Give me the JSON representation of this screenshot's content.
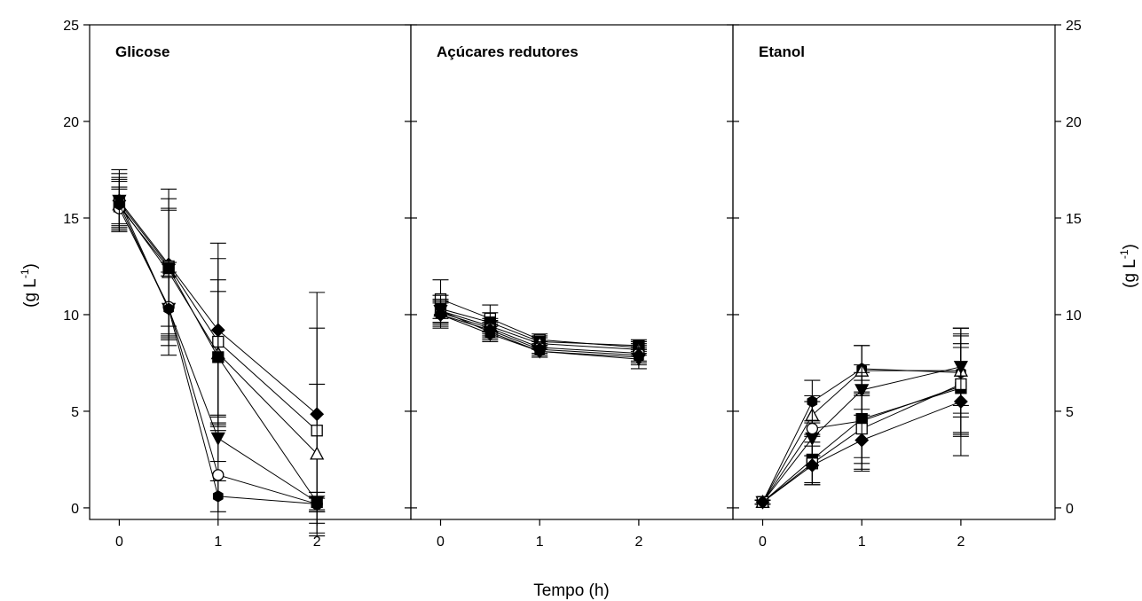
{
  "figure": {
    "x_axis_label": "Tempo (h)",
    "y_axis_label_left": "(g L",
    "y_axis_label_right": "(g L",
    "y_axis_unit_exponent": "-1",
    "y_axis_label_close": ")"
  },
  "chart_data": [
    {
      "type": "line",
      "title": "Glicose",
      "xlabel": "Tempo (h)",
      "ylabel": "(g L-1)",
      "xlim": [
        -0.3,
        2.95
      ],
      "ylim": [
        -0.6,
        25
      ],
      "x_ticks": [
        0,
        1,
        2
      ],
      "x_tick_labels": [
        "0",
        "1",
        "2"
      ],
      "y_ticks": [
        0,
        5,
        10,
        15,
        20,
        25
      ],
      "y_tick_labels": [
        "0",
        "5",
        "10",
        "15",
        "20",
        "25"
      ],
      "grid": false,
      "x": [
        0,
        0.5,
        1,
        2
      ],
      "series": [
        {
          "marker": "diamond-filled",
          "values": [
            15.9,
            12.6,
            9.2,
            4.85
          ],
          "errors": [
            1.6,
            3.9,
            4.5,
            6.3
          ]
        },
        {
          "marker": "square-open",
          "values": [
            15.8,
            12.5,
            8.6,
            4.0
          ],
          "errors": [
            1.5,
            3.5,
            4.3,
            5.3
          ]
        },
        {
          "marker": "triangle-up-open",
          "values": [
            15.7,
            12.2,
            8.0,
            2.8
          ],
          "errors": [
            1.3,
            3.3,
            3.8,
            3.6
          ]
        },
        {
          "marker": "square-filled",
          "values": [
            15.6,
            12.4,
            7.8,
            0.3
          ],
          "errors": [
            1.0,
            3.0,
            3.4,
            0.5
          ]
        },
        {
          "marker": "triangle-down-filled",
          "values": [
            15.9,
            10.3,
            3.6,
            0.3
          ],
          "errors": [
            1.2,
            2.4,
            1.2,
            0.5
          ]
        },
        {
          "marker": "circle-open",
          "values": [
            15.5,
            10.4,
            1.7,
            0.2
          ],
          "errors": [
            1.0,
            1.6,
            2.3,
            0.4
          ]
        },
        {
          "marker": "hexagon-filled",
          "values": [
            15.7,
            10.3,
            0.6,
            0.2
          ],
          "errors": [
            1.2,
            1.9,
            0.8,
            0.3
          ]
        }
      ]
    },
    {
      "type": "line",
      "title": "Açúcares redutores",
      "xlabel": "Tempo (h)",
      "ylabel": "(g L-1)",
      "xlim": [
        -0.3,
        2.95
      ],
      "ylim": [
        -0.6,
        25
      ],
      "x_ticks": [
        0,
        1,
        2
      ],
      "x_tick_labels": [
        "0",
        "1",
        "2"
      ],
      "grid": false,
      "x": [
        0,
        0.5,
        1,
        2
      ],
      "series": [
        {
          "marker": "square-open",
          "values": [
            10.8,
            9.8,
            8.7,
            8.3
          ],
          "errors": [
            1.0,
            0.7,
            0.3,
            0.3
          ]
        },
        {
          "marker": "square-filled",
          "values": [
            10.3,
            9.6,
            8.6,
            8.4
          ],
          "errors": [
            0.7,
            0.5,
            0.3,
            0.3
          ]
        },
        {
          "marker": "triangle-up-open",
          "values": [
            10.2,
            9.4,
            8.5,
            8.2
          ],
          "errors": [
            0.6,
            0.4,
            0.3,
            0.3
          ]
        },
        {
          "marker": "circle-open",
          "values": [
            10.1,
            9.3,
            8.3,
            8.0
          ],
          "errors": [
            0.6,
            0.4,
            0.3,
            0.4
          ]
        },
        {
          "marker": "diamond-filled",
          "values": [
            10.0,
            9.2,
            8.2,
            7.9
          ],
          "errors": [
            0.7,
            0.4,
            0.3,
            0.4
          ]
        },
        {
          "marker": "triangle-down-filled",
          "values": [
            10.2,
            9.1,
            8.1,
            7.7
          ],
          "errors": [
            0.6,
            0.4,
            0.3,
            0.5
          ]
        },
        {
          "marker": "hexagon-filled",
          "values": [
            10.0,
            9.0,
            8.1,
            7.8
          ],
          "errors": [
            0.6,
            0.4,
            0.3,
            0.4
          ]
        }
      ]
    },
    {
      "type": "line",
      "title": "Etanol",
      "xlabel": "Tempo (h)",
      "ylabel": "(g L-1)",
      "xlim": [
        -0.3,
        2.95
      ],
      "ylim": [
        -0.6,
        25
      ],
      "x_ticks": [
        0,
        1,
        2
      ],
      "x_tick_labels": [
        "0",
        "1",
        "2"
      ],
      "y_ticks": [
        0,
        5,
        10,
        15,
        20,
        25
      ],
      "y_tick_labels": [
        "0",
        "5",
        "10",
        "15",
        "20",
        "25"
      ],
      "grid": false,
      "x": [
        0,
        0.5,
        1,
        2
      ],
      "series": [
        {
          "marker": "hexagon-filled",
          "values": [
            0.3,
            5.5,
            7.2,
            7.0
          ],
          "errors": [
            0.1,
            1.1,
            1.2,
            2.3
          ]
        },
        {
          "marker": "triangle-up-open",
          "values": [
            0.3,
            4.8,
            7.1,
            7.1
          ],
          "errors": [
            0.1,
            1.0,
            1.3,
            2.2
          ]
        },
        {
          "marker": "triangle-down-filled",
          "values": [
            0.3,
            3.6,
            6.1,
            7.3
          ],
          "errors": [
            0.1,
            0.9,
            1.3,
            2.0
          ]
        },
        {
          "marker": "circle-open",
          "values": [
            0.3,
            4.1,
            4.5,
            6.3
          ],
          "errors": [
            0.1,
            1.4,
            2.5,
            2.6
          ]
        },
        {
          "marker": "square-filled",
          "values": [
            0.3,
            2.5,
            4.6,
            6.2
          ],
          "errors": [
            0.1,
            1.2,
            2.0,
            2.3
          ]
        },
        {
          "marker": "square-open",
          "values": [
            0.3,
            2.3,
            4.1,
            6.4
          ],
          "errors": [
            0.1,
            1.1,
            1.8,
            2.6
          ]
        },
        {
          "marker": "diamond-filled",
          "values": [
            0.3,
            2.2,
            3.5,
            5.5
          ],
          "errors": [
            0.1,
            1.0,
            1.6,
            2.8
          ]
        }
      ]
    }
  ]
}
